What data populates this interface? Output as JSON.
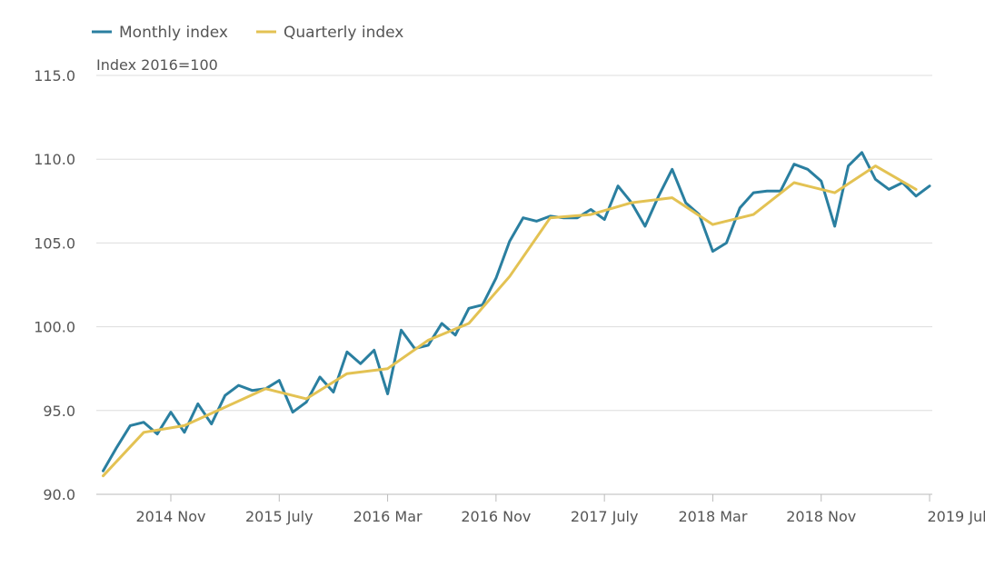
{
  "colors": {
    "monthly": "#2a7fa0",
    "quarterly": "#e3c253"
  },
  "chart_data": {
    "type": "line",
    "ylabel": "Index 2016=100",
    "ylim": [
      90,
      115
    ],
    "yticks": [
      "90.0",
      "95.0",
      "100.0",
      "105.0",
      "110.0",
      "115.0"
    ],
    "xticks": [
      {
        "x": 5,
        "label": "2014 Nov"
      },
      {
        "x": 13,
        "label": "2015 July"
      },
      {
        "x": 21,
        "label": "2016 Mar"
      },
      {
        "x": 29,
        "label": "2016 Nov"
      },
      {
        "x": 37,
        "label": "2017 July"
      },
      {
        "x": 45,
        "label": "2018 Mar"
      },
      {
        "x": 53,
        "label": "2018 Nov"
      },
      {
        "x": 61,
        "label": "2019 Jul"
      }
    ],
    "x_domain": [
      -0.5,
      61.2
    ],
    "grid": true,
    "legend_position": "top-left",
    "series": [
      {
        "name": "Monthly index",
        "color_key": "monthly",
        "x": [
          0,
          1,
          2,
          3,
          4,
          5,
          6,
          7,
          8,
          9,
          10,
          11,
          12,
          13,
          14,
          15,
          16,
          17,
          18,
          19,
          20,
          21,
          22,
          23,
          24,
          25,
          26,
          27,
          28,
          29,
          30,
          31,
          32,
          33,
          34,
          35,
          36,
          37,
          38,
          39,
          40,
          41,
          42,
          43,
          44,
          45,
          46,
          47,
          48,
          49,
          50,
          51,
          52,
          53,
          54,
          55,
          56,
          57,
          58,
          59,
          60,
          61
        ],
        "values": [
          91.4,
          92.8,
          94.1,
          94.3,
          93.6,
          94.9,
          93.7,
          95.4,
          94.2,
          95.9,
          96.5,
          96.2,
          96.3,
          96.8,
          94.9,
          95.5,
          97.0,
          96.1,
          98.5,
          97.8,
          98.6,
          96.0,
          99.8,
          98.7,
          98.9,
          100.2,
          99.5,
          101.1,
          101.3,
          102.9,
          105.1,
          106.5,
          106.3,
          106.6,
          106.5,
          106.5,
          107.0,
          106.4,
          108.4,
          107.4,
          106.0,
          107.8,
          109.4,
          107.4,
          106.7,
          104.5,
          105.0,
          107.1,
          108.0,
          108.1,
          108.1,
          109.7,
          109.4,
          108.7,
          106.0,
          109.6,
          110.4,
          108.8,
          108.2,
          108.6,
          107.8,
          108.4
        ]
      },
      {
        "name": "Quarterly index",
        "color_key": "quarterly",
        "x": [
          0,
          3,
          6,
          9,
          12,
          15,
          18,
          21,
          24,
          27,
          30,
          33,
          36,
          39,
          42,
          45,
          48,
          51,
          54,
          57,
          60
        ],
        "values": [
          91.1,
          93.7,
          94.1,
          95.2,
          96.3,
          95.7,
          97.2,
          97.5,
          99.2,
          100.2,
          103.0,
          106.5,
          106.7,
          107.4,
          107.7,
          106.1,
          106.7,
          108.6,
          108.0,
          109.6,
          108.2
        ]
      }
    ]
  }
}
